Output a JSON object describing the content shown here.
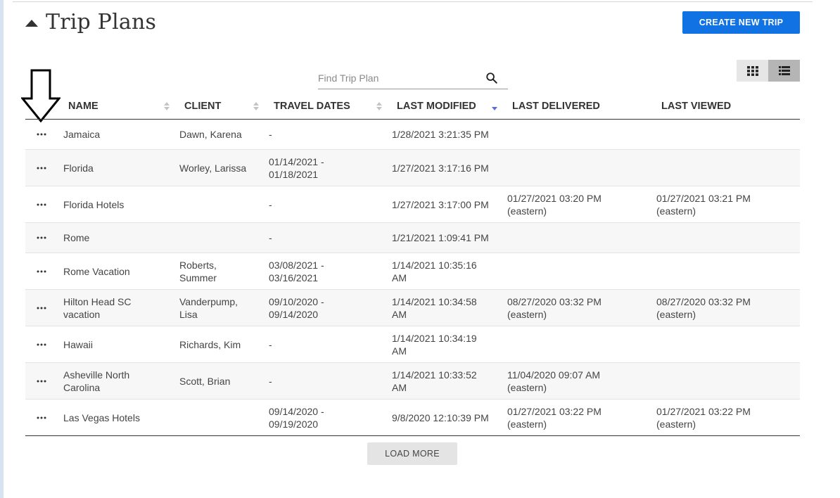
{
  "page": {
    "title": "Trip Plans"
  },
  "toolbar": {
    "create_label": "CREATE NEW TRIP"
  },
  "search": {
    "placeholder": "Find Trip Plan",
    "value": ""
  },
  "view_toggle": {
    "grid_icon": "grid-view-icon",
    "list_icon": "list-view-icon",
    "active": "list"
  },
  "table": {
    "columns": [
      "NAME",
      "CLIENT",
      "TRAVEL DATES",
      "LAST MODIFIED",
      "LAST DELIVERED",
      "LAST VIEWED"
    ],
    "sort": {
      "column": "LAST MODIFIED",
      "direction": "descending"
    },
    "rows": [
      {
        "name": [
          "Jamaica"
        ],
        "client": [
          "Dawn, Karena"
        ],
        "travel": [
          "-"
        ],
        "modified": [
          "1/28/2021 3:21:35 PM"
        ],
        "delivered": [],
        "viewed": []
      },
      {
        "name": [
          "Florida"
        ],
        "client": [
          "Worley, Larissa"
        ],
        "travel": [
          "01/14/2021 -",
          "01/18/2021"
        ],
        "modified": [
          "1/27/2021 3:17:16 PM"
        ],
        "delivered": [],
        "viewed": []
      },
      {
        "name": [
          "Florida Hotels"
        ],
        "client": [],
        "travel": [
          "-"
        ],
        "modified": [
          "1/27/2021 3:17:00 PM"
        ],
        "delivered": [
          "01/27/2021 03:20 PM",
          "(eastern)"
        ],
        "viewed": [
          "01/27/2021 03:21 PM",
          "(eastern)"
        ]
      },
      {
        "name": [
          "Rome"
        ],
        "client": [],
        "travel": [
          "-"
        ],
        "modified": [
          "1/21/2021 1:09:41 PM"
        ],
        "delivered": [],
        "viewed": []
      },
      {
        "name": [
          "Rome Vacation"
        ],
        "client": [
          "Roberts,",
          "Summer"
        ],
        "travel": [
          "03/08/2021 -",
          "03/16/2021"
        ],
        "modified": [
          "1/14/2021 10:35:16",
          "AM"
        ],
        "delivered": [],
        "viewed": []
      },
      {
        "name": [
          "Hilton Head SC",
          "vacation"
        ],
        "client": [
          "Vanderpump,",
          "Lisa"
        ],
        "travel": [
          "09/10/2020 -",
          "09/14/2020"
        ],
        "modified": [
          "1/14/2021 10:34:58",
          "AM"
        ],
        "delivered": [
          "08/27/2020 03:32 PM",
          "(eastern)"
        ],
        "viewed": [
          "08/27/2020 03:32 PM",
          "(eastern)"
        ]
      },
      {
        "name": [
          "Hawaii"
        ],
        "client": [
          "Richards, Kim"
        ],
        "travel": [
          "-"
        ],
        "modified": [
          "1/14/2021 10:34:19",
          "AM"
        ],
        "delivered": [],
        "viewed": []
      },
      {
        "name": [
          "Asheville North",
          "Carolina"
        ],
        "client": [
          "Scott, Brian"
        ],
        "travel": [
          "-"
        ],
        "modified": [
          "1/14/2021 10:33:52",
          "AM"
        ],
        "delivered": [
          "11/04/2020 09:07 AM",
          "(eastern)"
        ],
        "viewed": []
      },
      {
        "name": [
          "Las Vegas Hotels"
        ],
        "client": [],
        "travel": [
          "09/14/2020 -",
          "09/19/2020"
        ],
        "modified": [
          "9/8/2020 12:10:39 PM"
        ],
        "delivered": [
          "01/27/2021 03:22 PM",
          "(eastern)"
        ],
        "viewed": [
          "01/27/2021 03:22 PM",
          "(eastern)"
        ]
      }
    ]
  },
  "footer": {
    "load_more_label": "LOAD MORE"
  },
  "colors": {
    "primary": "#1172e4",
    "sort_active": "#5b6fd6",
    "sort_inactive": "#c4c4c4"
  }
}
